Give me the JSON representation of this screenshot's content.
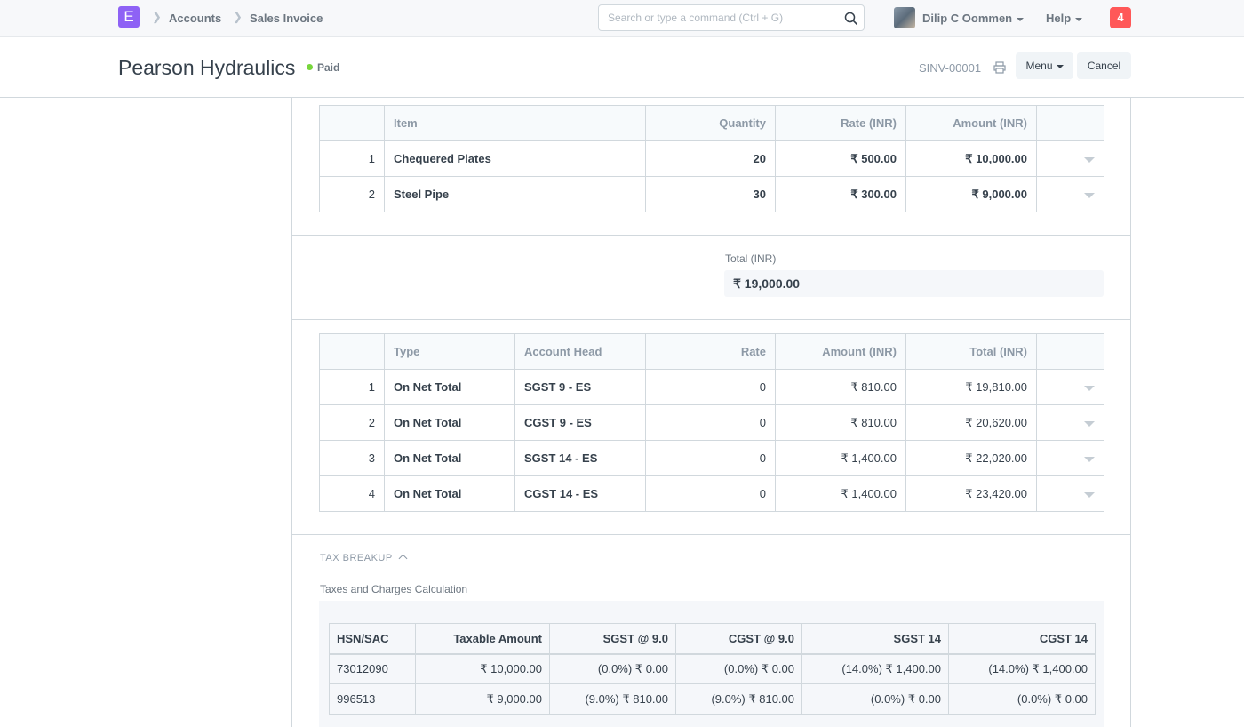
{
  "navbar": {
    "logo_letter": "E",
    "breadcrumbs": [
      "Accounts",
      "Sales Invoice"
    ],
    "search_placeholder": "Search or type a command (Ctrl + G)",
    "user_name": "Dilip C Oommen",
    "help_label": "Help",
    "notification_count": "4"
  },
  "page_head": {
    "title": "Pearson Hydraulics",
    "status": "Paid",
    "status_color": "#78d63c",
    "doc_id": "SINV-00001",
    "menu_label": "Menu",
    "cancel_label": "Cancel"
  },
  "items_table": {
    "headers": [
      "",
      "Item",
      "Quantity",
      "Rate (INR)",
      "Amount (INR)",
      ""
    ],
    "rows": [
      {
        "idx": "1",
        "item": "Chequered Plates",
        "qty": "20",
        "rate": "₹ 500.00",
        "amount": "₹ 10,000.00"
      },
      {
        "idx": "2",
        "item": "Steel Pipe",
        "qty": "30",
        "rate": "₹ 300.00",
        "amount": "₹ 9,000.00"
      }
    ]
  },
  "total": {
    "label": "Total (INR)",
    "value": "₹ 19,000.00"
  },
  "taxes_table": {
    "headers": [
      "",
      "Type",
      "Account Head",
      "Rate",
      "Amount (INR)",
      "Total (INR)",
      ""
    ],
    "rows": [
      {
        "idx": "1",
        "type": "On Net Total",
        "account": "SGST 9 - ES",
        "rate": "0",
        "amount": "₹ 810.00",
        "total": "₹ 19,810.00"
      },
      {
        "idx": "2",
        "type": "On Net Total",
        "account": "CGST 9 - ES",
        "rate": "0",
        "amount": "₹ 810.00",
        "total": "₹ 20,620.00"
      },
      {
        "idx": "3",
        "type": "On Net Total",
        "account": "SGST 14 - ES",
        "rate": "0",
        "amount": "₹ 1,400.00",
        "total": "₹ 22,020.00"
      },
      {
        "idx": "4",
        "type": "On Net Total",
        "account": "CGST 14 - ES",
        "rate": "0",
        "amount": "₹ 1,400.00",
        "total": "₹ 23,420.00"
      }
    ]
  },
  "tax_breakup": {
    "section_title": "TAX BREAKUP",
    "subtitle": "Taxes and Charges Calculation",
    "headers": [
      "HSN/SAC",
      "Taxable Amount",
      "SGST @ 9.0",
      "CGST @ 9.0",
      "SGST 14",
      "CGST 14"
    ],
    "rows": [
      [
        "73012090",
        "₹ 10,000.00",
        "(0.0%) ₹ 0.00",
        "(0.0%) ₹ 0.00",
        "(14.0%) ₹ 1,400.00",
        "(14.0%) ₹ 1,400.00"
      ],
      [
        "996513",
        "₹ 9,000.00",
        "(9.0%) ₹ 810.00",
        "(9.0%) ₹ 810.00",
        "(0.0%) ₹ 0.00",
        "(0.0%) ₹ 0.00"
      ]
    ]
  }
}
